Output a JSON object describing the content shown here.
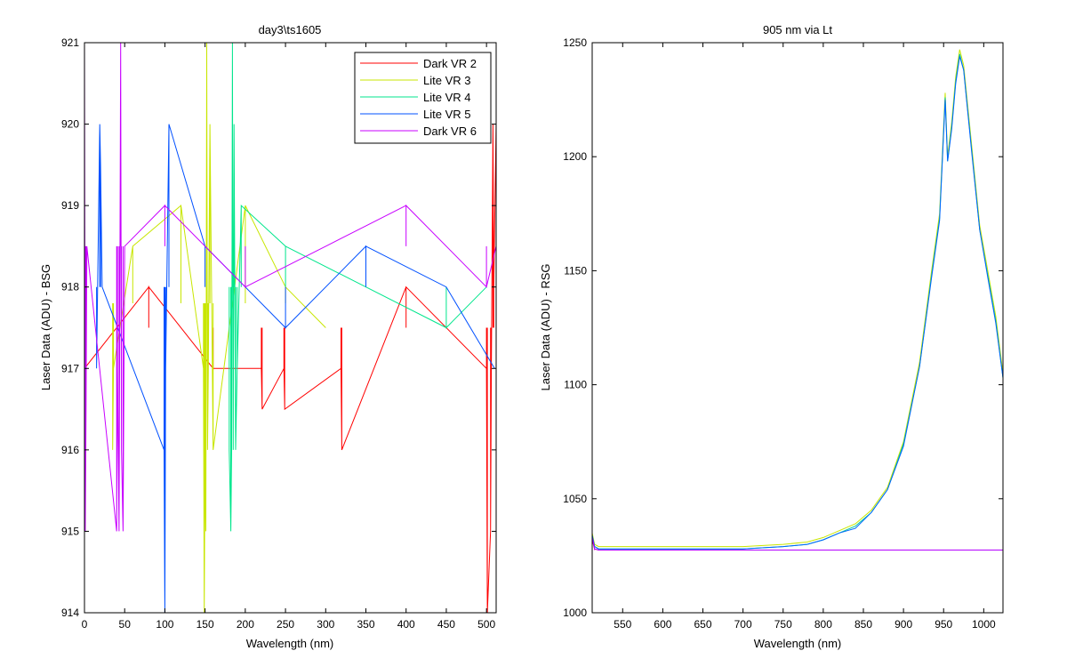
{
  "chart_data": [
    {
      "type": "line",
      "title": "day3\\ts1605",
      "xlabel": "Wavelength (nm)",
      "ylabel": "Laser Data (ADU) - BSG",
      "xlim": [
        0,
        512
      ],
      "ylim": [
        914,
        921
      ],
      "xticks": [
        0,
        50,
        100,
        150,
        200,
        250,
        300,
        350,
        400,
        450,
        500
      ],
      "yticks": [
        914,
        915,
        916,
        917,
        918,
        919,
        920,
        921
      ],
      "legend_position": "top-right",
      "series": [
        {
          "name": "Dark VR 2",
          "color": "#ff0000",
          "base": 917.5,
          "x": [
            0,
            80,
            160,
            220,
            221,
            248,
            249,
            319,
            320,
            400,
            500,
            501,
            505,
            506,
            508,
            509,
            512
          ],
          "y": [
            917,
            918,
            917,
            917,
            916.5,
            917,
            916.5,
            917,
            916,
            918,
            917,
            914,
            915,
            917,
            920,
            918,
            920
          ]
        },
        {
          "name": "Lite VR 3",
          "color": "#c8e600",
          "base": 917.8,
          "x": [
            35,
            36,
            60,
            120,
            148,
            149,
            150,
            151,
            152,
            153,
            154,
            156,
            160,
            200,
            250,
            300
          ],
          "y": [
            916,
            917,
            918.5,
            919,
            917,
            914,
            916,
            915,
            921,
            916,
            917,
            920,
            916,
            919,
            918,
            917.5
          ]
        },
        {
          "name": "Lite VR 4",
          "color": "#00e68c",
          "base": 918.0,
          "x": [
            180,
            182,
            183,
            184,
            185,
            186,
            188,
            190,
            195,
            250,
            350,
            450,
            500
          ],
          "y": [
            916,
            915,
            916,
            921,
            916,
            920,
            916,
            917,
            919,
            918.5,
            918,
            917.5,
            918
          ]
        },
        {
          "name": "Lite VR 5",
          "color": "#0050ff",
          "base": 918.0,
          "x": [
            15,
            19,
            20,
            22,
            99,
            100,
            101,
            105,
            150,
            250,
            350,
            450,
            510
          ],
          "y": [
            917,
            920,
            919.5,
            918,
            916,
            914,
            917,
            920,
            918.5,
            917.5,
            918.5,
            918,
            917
          ]
        },
        {
          "name": "Dark VR 6",
          "color": "#c800ff",
          "base": 918.5,
          "x": [
            0,
            1,
            2,
            3,
            40,
            41,
            43,
            45,
            46,
            48,
            50,
            100,
            200,
            300,
            400,
            500,
            512
          ],
          "y": [
            921,
            915,
            916.5,
            918.5,
            915,
            917,
            915,
            921,
            916,
            915,
            918.5,
            919,
            918,
            918.5,
            919,
            918,
            918.5
          ]
        }
      ]
    },
    {
      "type": "line",
      "title": "905 nm via Lt",
      "xlabel": "Wavelength (nm)",
      "ylabel": "Laser Data (ADU) - RSG",
      "xlim": [
        512,
        1024
      ],
      "ylim": [
        1000,
        1250
      ],
      "xticks": [
        550,
        600,
        650,
        700,
        750,
        800,
        850,
        900,
        950,
        1000
      ],
      "yticks": [
        1000,
        1050,
        1100,
        1150,
        1200,
        1250
      ],
      "series": [
        {
          "color": "#c8e600",
          "x": [
            512,
            515,
            520,
            550,
            600,
            650,
            700,
            750,
            780,
            800,
            820,
            840,
            860,
            880,
            900,
            920,
            935,
            945,
            952,
            955,
            960,
            965,
            970,
            975,
            985,
            995,
            1005,
            1015,
            1024
          ],
          "y": [
            1035,
            1030,
            1029,
            1029,
            1029,
            1029,
            1029,
            1030,
            1031,
            1033,
            1036,
            1039,
            1045,
            1055,
            1075,
            1110,
            1150,
            1175,
            1228,
            1200,
            1215,
            1235,
            1247,
            1240,
            1205,
            1170,
            1150,
            1130,
            1105
          ]
        },
        {
          "color": "#00c8a0",
          "x": [
            512,
            515,
            520,
            550,
            600,
            650,
            700,
            750,
            780,
            800,
            820,
            840,
            860,
            880,
            900,
            920,
            935,
            945,
            952,
            955,
            960,
            965,
            970,
            975,
            985,
            995,
            1005,
            1015,
            1024
          ],
          "y": [
            1034,
            1029,
            1028,
            1028,
            1028,
            1028,
            1028,
            1029,
            1030,
            1032,
            1035,
            1038,
            1044,
            1054,
            1074,
            1108,
            1148,
            1173,
            1226,
            1198,
            1213,
            1233,
            1245,
            1238,
            1203,
            1168,
            1148,
            1128,
            1103
          ]
        },
        {
          "color": "#0064ff",
          "x": [
            512,
            515,
            520,
            550,
            600,
            650,
            700,
            750,
            780,
            800,
            820,
            840,
            860,
            880,
            900,
            920,
            935,
            945,
            952,
            955,
            960,
            965,
            970,
            975,
            985,
            995,
            1005,
            1015,
            1024
          ],
          "y": [
            1034,
            1029,
            1028,
            1028,
            1028,
            1028,
            1028,
            1029,
            1030,
            1032,
            1035,
            1037,
            1044,
            1054,
            1073,
            1108,
            1147,
            1172,
            1225,
            1198,
            1212,
            1232,
            1244,
            1238,
            1202,
            1168,
            1147,
            1127,
            1103
          ]
        },
        {
          "color": "#ff0050",
          "base": 1027.5,
          "x": [
            512,
            515,
            520,
            1024
          ],
          "y": [
            1032,
            1028,
            1027.5,
            1027.5
          ]
        },
        {
          "color": "#b400ff",
          "base": 1027.5,
          "x": [
            512,
            515,
            520,
            1024
          ],
          "y": [
            1033,
            1028,
            1027.5,
            1027.5
          ]
        }
      ]
    }
  ]
}
